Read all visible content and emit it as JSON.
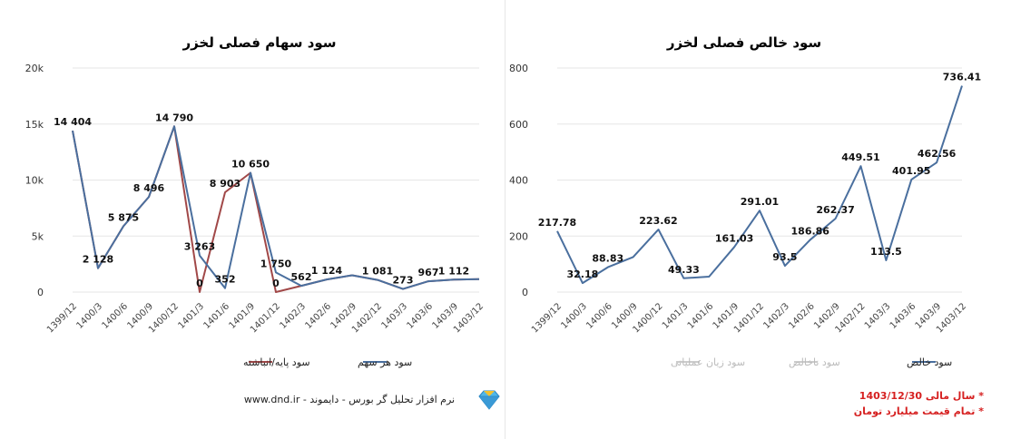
{
  "charts": [
    {
      "id": "eps",
      "title": "سود سهام فصلی لخزر",
      "type": "line",
      "categories": [
        "1399/12",
        "1400/3",
        "1400/6",
        "1400/9",
        "1400/12",
        "1401/3",
        "1401/6",
        "1401/9",
        "1401/12",
        "1402/3",
        "1402/6",
        "1402/9",
        "1402/12",
        "1403/3",
        "1403/6",
        "1403/9",
        "1403/12"
      ],
      "y_ticks": [
        "0",
        "5k",
        "10k",
        "15k",
        "20k"
      ],
      "ylim": [
        0,
        20000
      ],
      "grid": true,
      "legend_position": "bottom",
      "series": [
        {
          "name": "سود هر سهم",
          "color": "#4a6f9e",
          "values": [
            14404,
            2128,
            5875,
            8496,
            14790,
            3263,
            352,
            10650,
            1750,
            562,
            1124,
            1500,
            1081,
            273,
            967,
            1112,
            1150
          ],
          "labels": [
            "14 404",
            "2 128",
            "5 875",
            "8 496",
            "14 790",
            "3 263",
            "352",
            "10 650",
            "1 750",
            "562",
            "1 124",
            "",
            "1 081",
            "273",
            "967",
            "1 112",
            ""
          ]
        },
        {
          "name": "سود پایه/انباشته",
          "color": "#a14848",
          "values": [
            14404,
            2128,
            5875,
            8496,
            14790,
            0,
            8903,
            10650,
            0,
            562,
            1124,
            1500,
            1081,
            273,
            967,
            1112,
            1150
          ],
          "labels": [
            "",
            "",
            "",
            "",
            "",
            "0",
            "8 903",
            "",
            "0",
            "",
            "",
            "",
            "",
            "",
            "",
            "",
            ""
          ]
        }
      ]
    },
    {
      "id": "net",
      "title": "سود خالص فصلی لخزر",
      "type": "line",
      "categories": [
        "1399/12",
        "1400/3",
        "1400/6",
        "1400/9",
        "1400/12",
        "1401/3",
        "1401/6",
        "1401/9",
        "1401/12",
        "1402/3",
        "1402/6",
        "1402/9",
        "1402/12",
        "1403/3",
        "1403/6",
        "1403/9",
        "1403/12"
      ],
      "y_ticks": [
        "0",
        "200",
        "400",
        "600",
        "800"
      ],
      "ylim": [
        0,
        800
      ],
      "grid": true,
      "legend_position": "bottom",
      "series": [
        {
          "name": "سود خالص",
          "color": "#4a6f9e",
          "values": [
            217.78,
            32.18,
            88.83,
            125,
            223.62,
            49.33,
            55,
            161.03,
            291.01,
            93.5,
            186.86,
            262.37,
            449.51,
            113.5,
            401.95,
            462.56,
            736.41
          ],
          "labels": [
            "217.78",
            "32.18",
            "88.83",
            "",
            "223.62",
            "49.33",
            "",
            "161.03",
            "291.01",
            "93.5",
            "186.86",
            "262.37",
            "449.51",
            "113.5",
            "401.95",
            "462.56",
            "736.41"
          ]
        }
      ],
      "hidden_legend": [
        {
          "name": "سود ناخالص",
          "color": "#cccccc"
        },
        {
          "name": "سود زیان عملیاتی",
          "color": "#cccccc"
        }
      ]
    }
  ],
  "footer": {
    "software": "نرم افزار تحلیل گر بورس - دایموند - www.dnd.ir",
    "logo": "diamond-icon",
    "notes": [
      "* سال مالی 1403/12/30",
      "* تمام قیمت میلیارد تومان"
    ]
  }
}
